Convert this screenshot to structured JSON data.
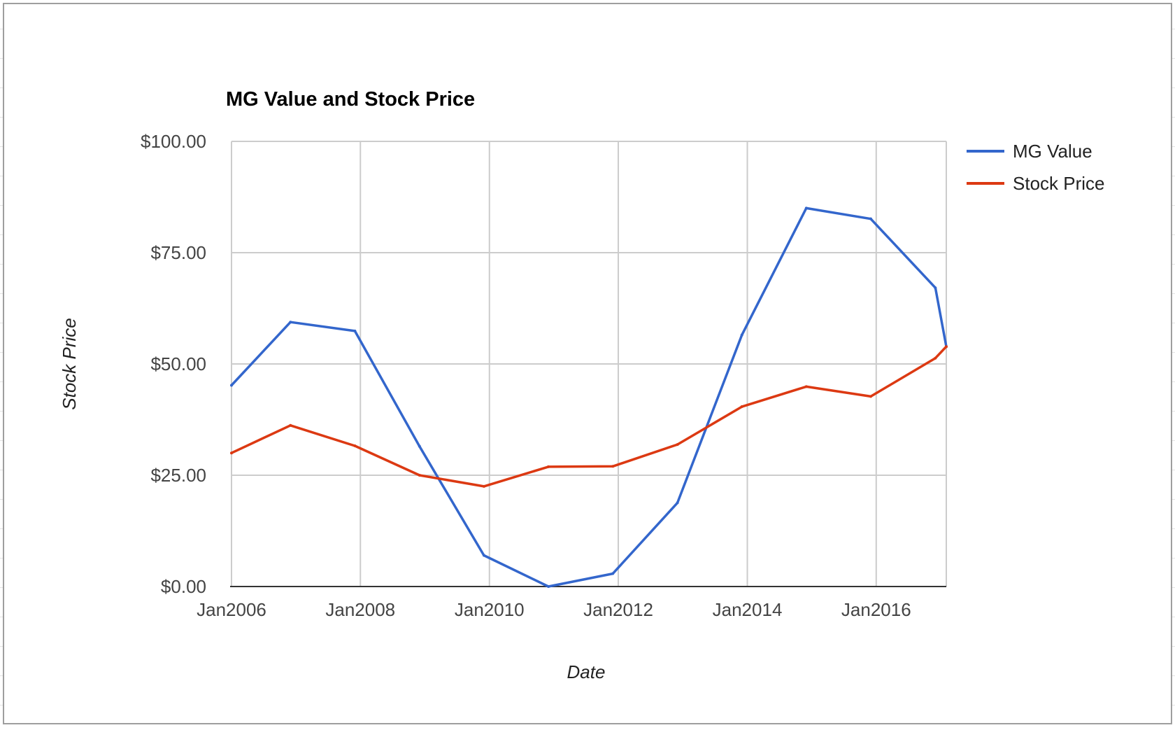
{
  "chart_data": {
    "type": "line",
    "title": "MG Value and Stock Price",
    "xlabel": "Date",
    "ylabel": "Stock Price",
    "x_ticks": [
      "Jan2006",
      "Jan2008",
      "Jan2010",
      "Jan2012",
      "Jan2014",
      "Jan2016"
    ],
    "y_ticks": [
      "$0.00",
      "$25.00",
      "$50.00",
      "$75.00",
      "$100.00"
    ],
    "ylim": [
      0,
      100
    ],
    "xlim": [
      "2006-01-01",
      "2017-02-01"
    ],
    "grid": true,
    "legend_position": "right",
    "x": [
      "2006-01-01",
      "2006-12-01",
      "2007-12-01",
      "2008-12-01",
      "2009-12-01",
      "2010-12-01",
      "2011-12-01",
      "2012-12-01",
      "2013-12-01",
      "2014-12-01",
      "2015-12-01",
      "2016-12-01",
      "2017-02-01"
    ],
    "series": [
      {
        "name": "MG Value",
        "color": "#3366cc",
        "values": [
          45.2,
          59.4,
          57.4,
          31.5,
          7.0,
          0.0,
          2.9,
          18.8,
          56.5,
          85.0,
          82.6,
          67.1,
          53.9
        ]
      },
      {
        "name": "Stock Price",
        "color": "#dc3912",
        "values": [
          30.0,
          36.2,
          31.6,
          25.0,
          22.5,
          26.9,
          27.0,
          31.9,
          40.4,
          44.9,
          42.7,
          51.3,
          53.9
        ]
      }
    ]
  }
}
